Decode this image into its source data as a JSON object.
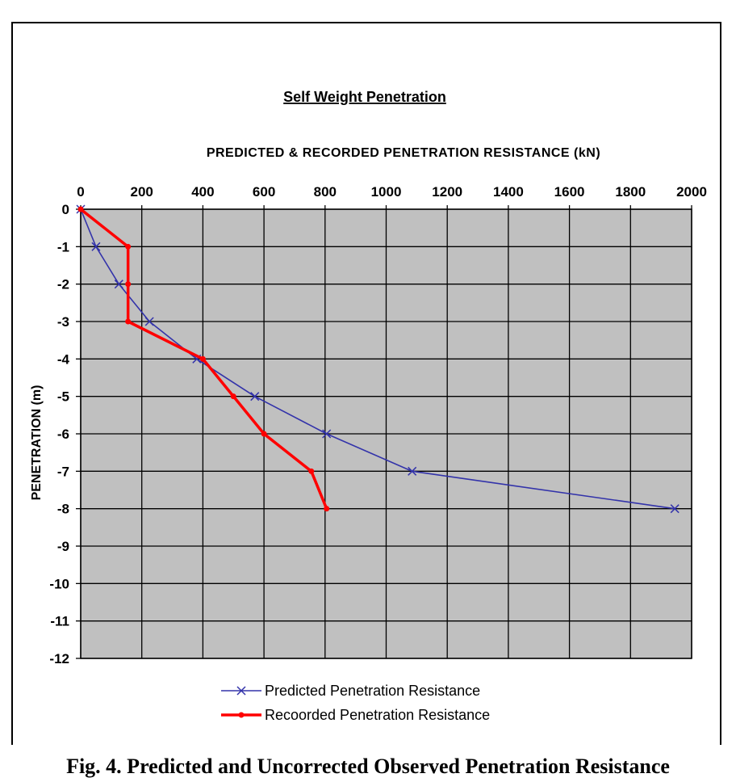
{
  "chart_data": {
    "type": "line",
    "title": "Self Weight Penetration",
    "xlabel": "PREDICTED & RECORDED PENETRATION RESISTANCE (kN)",
    "ylabel": "PENETRATION (m)",
    "xlim": [
      0,
      2000
    ],
    "ylim": [
      -12,
      0
    ],
    "x_ticks": [
      0,
      200,
      400,
      600,
      800,
      1000,
      1200,
      1400,
      1600,
      1800,
      2000
    ],
    "y_ticks": [
      0,
      -1,
      -2,
      -3,
      -4,
      -5,
      -6,
      -7,
      -8,
      -9,
      -10,
      -11,
      -12
    ],
    "grid": true,
    "x_axis_position": "top",
    "legend_position": "bottom",
    "series": [
      {
        "name": "Predicted Penetration Resistance",
        "color": "#3333aa",
        "marker": "x",
        "points": [
          [
            0,
            0
          ],
          [
            50,
            -1
          ],
          [
            125,
            -2
          ],
          [
            225,
            -3
          ],
          [
            380,
            -4
          ],
          [
            570,
            -5
          ],
          [
            805,
            -6
          ],
          [
            1085,
            -7
          ],
          [
            1945,
            -8
          ]
        ]
      },
      {
        "name": "Recoorded Penetration Resistance",
        "color": "#ff0000",
        "marker": "dot",
        "points": [
          [
            0,
            0
          ],
          [
            155,
            -1
          ],
          [
            155,
            -2
          ],
          [
            155,
            -3
          ],
          [
            400,
            -4
          ],
          [
            500,
            -5
          ],
          [
            600,
            -6
          ],
          [
            755,
            -7
          ],
          [
            805,
            -8
          ]
        ]
      }
    ],
    "plot_background": "#c0c0c0"
  },
  "caption": "Fig. 4. Predicted and Uncorrected Observed Penetration Resistance"
}
